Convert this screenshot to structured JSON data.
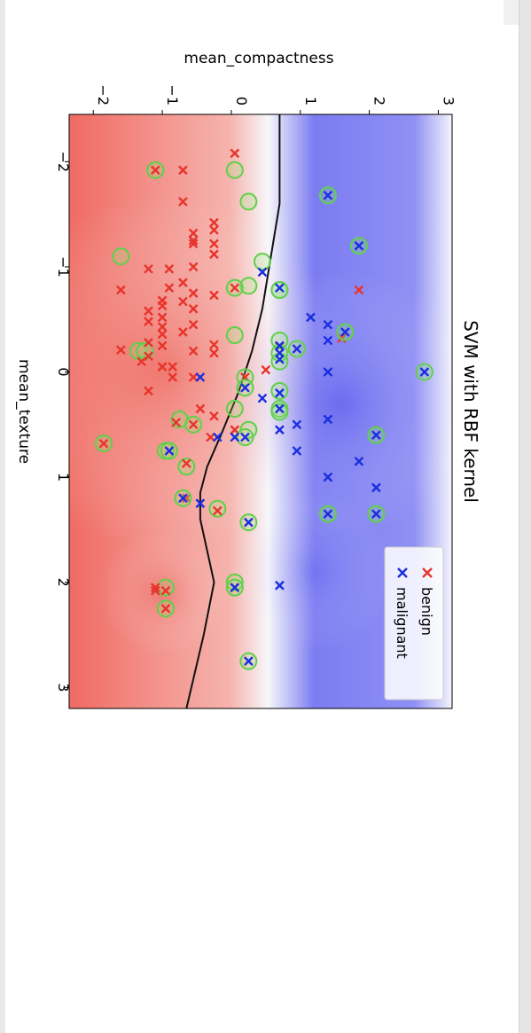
{
  "chart_data": {
    "type": "scatter",
    "title": "SVM with RBF kernel",
    "xlabel": "mean_texture",
    "ylabel": "mean_compactness",
    "xlim": [
      -2.45,
      3.2
    ],
    "ylim": [
      -2.35,
      3.2
    ],
    "xticks": [
      -2,
      -1,
      0,
      1,
      2,
      3
    ],
    "yticks": [
      -2,
      -1,
      0,
      1,
      2,
      3
    ],
    "xtick_labels": [
      "−2",
      "−1",
      "0",
      "1",
      "2",
      "3"
    ],
    "ytick_labels": [
      "−2",
      "−1",
      "0",
      "1",
      "2",
      "3"
    ],
    "legend": {
      "placement": "lower-right",
      "entries": [
        "benign",
        "malignant"
      ]
    },
    "background": "decision-function shading (red = benign side, blue = malignant side)",
    "decision_boundary": {
      "x": [
        -2.45,
        -1.6,
        -1.2,
        -0.6,
        -0.2,
        0.2,
        0.6,
        0.9,
        1.15,
        1.4,
        1.7,
        2.0,
        2.5,
        3.2
      ],
      "y": [
        0.7,
        0.7,
        0.6,
        0.45,
        0.3,
        0.1,
        -0.15,
        -0.35,
        -0.45,
        -0.45,
        -0.35,
        -0.25,
        -0.4,
        -0.65
      ]
    },
    "series": [
      {
        "name": "benign",
        "color": "#e8342c",
        "points": [
          [
            -1.92,
            -1.1
          ],
          [
            -1.92,
            -0.7
          ],
          [
            -2.08,
            0.05
          ],
          [
            -1.62,
            -0.7
          ],
          [
            -1.42,
            -0.25
          ],
          [
            -1.35,
            -0.25
          ],
          [
            -1.32,
            -0.55
          ],
          [
            -1.25,
            -0.55
          ],
          [
            -1.22,
            -0.25
          ],
          [
            -1.22,
            -0.55
          ],
          [
            -1.12,
            -0.25
          ],
          [
            -1.0,
            -0.55
          ],
          [
            -0.98,
            -1.2
          ],
          [
            -0.98,
            -0.9
          ],
          [
            -0.85,
            -0.7
          ],
          [
            -0.8,
            0.05
          ],
          [
            -0.8,
            -0.9
          ],
          [
            -0.78,
            -1.6
          ],
          [
            -0.75,
            -0.55
          ],
          [
            -0.73,
            -0.25
          ],
          [
            -0.68,
            -1.0
          ],
          [
            -0.67,
            -0.7
          ],
          [
            -0.63,
            -1.0
          ],
          [
            -0.6,
            -0.55
          ],
          [
            -0.58,
            -1.2
          ],
          [
            -0.52,
            -1.0
          ],
          [
            -0.48,
            -1.2
          ],
          [
            -0.45,
            -0.55
          ],
          [
            -0.43,
            -1.0
          ],
          [
            -0.38,
            -0.7
          ],
          [
            -0.36,
            -1.0
          ],
          [
            -0.28,
            -1.2
          ],
          [
            -0.26,
            -0.25
          ],
          [
            -0.25,
            -1.0
          ],
          [
            -0.21,
            -1.6
          ],
          [
            -0.2,
            -0.55
          ],
          [
            -0.18,
            -0.25
          ],
          [
            -0.15,
            -1.2
          ],
          [
            -0.1,
            -1.3
          ],
          [
            -0.05,
            -1.0
          ],
          [
            -0.05,
            -0.85
          ],
          [
            0.05,
            -0.85
          ],
          [
            0.05,
            -0.55
          ],
          [
            -0.02,
            0.5
          ],
          [
            0.05,
            0.2
          ],
          [
            0.18,
            -1.2
          ],
          [
            0.35,
            -0.45
          ],
          [
            0.42,
            -0.25
          ],
          [
            0.48,
            -0.8
          ],
          [
            0.5,
            -0.55
          ],
          [
            0.55,
            0.05
          ],
          [
            0.62,
            -0.3
          ],
          [
            0.68,
            -1.85
          ],
          [
            0.87,
            -0.65
          ],
          [
            1.2,
            -0.65
          ],
          [
            1.32,
            -0.2
          ],
          [
            2.05,
            -1.1
          ],
          [
            2.08,
            -1.1
          ],
          [
            2.05,
            0.05
          ],
          [
            2.08,
            -0.95
          ],
          [
            2.25,
            -0.95
          ],
          [
            -0.32,
            1.6
          ],
          [
            -0.24,
            0.7
          ],
          [
            -0.78,
            1.85
          ]
        ],
        "support_vectors": [
          [
            -1.92,
            -1.1
          ],
          [
            -1.92,
            0.05
          ],
          [
            -1.62,
            0.25
          ],
          [
            -1.1,
            -1.6
          ],
          [
            -0.82,
            0.25
          ],
          [
            -0.8,
            0.05
          ],
          [
            -0.78,
            0.7
          ],
          [
            -0.35,
            0.05
          ],
          [
            -0.2,
            -1.35
          ],
          [
            -0.2,
            -1.25
          ],
          [
            -0.1,
            0.7
          ],
          [
            0.05,
            0.2
          ],
          [
            0.35,
            0.05
          ],
          [
            0.45,
            -0.75
          ],
          [
            0.55,
            0.25
          ],
          [
            0.5,
            -0.55
          ],
          [
            0.68,
            -1.85
          ],
          [
            0.75,
            -0.95
          ],
          [
            0.9,
            -0.65
          ],
          [
            1.3,
            -0.2
          ],
          [
            2.0,
            0.05
          ],
          [
            2.05,
            -0.95
          ],
          [
            2.25,
            -0.95
          ]
        ]
      },
      {
        "name": "malignant",
        "color": "#1a2ee0",
        "points": [
          [
            -1.68,
            1.4
          ],
          [
            -1.2,
            1.85
          ],
          [
            -0.95,
            0.45
          ],
          [
            -0.8,
            0.7
          ],
          [
            -0.52,
            1.15
          ],
          [
            -0.45,
            1.4
          ],
          [
            -0.38,
            1.65
          ],
          [
            -0.3,
            1.4
          ],
          [
            -0.25,
            0.7
          ],
          [
            -0.22,
            0.95
          ],
          [
            -0.18,
            0.7
          ],
          [
            -0.12,
            0.7
          ],
          [
            0.0,
            2.8
          ],
          [
            0.0,
            1.4
          ],
          [
            0.05,
            -0.45
          ],
          [
            0.15,
            0.2
          ],
          [
            0.2,
            0.7
          ],
          [
            0.25,
            0.45
          ],
          [
            0.35,
            0.7
          ],
          [
            0.45,
            1.4
          ],
          [
            0.55,
            0.7
          ],
          [
            0.5,
            0.95
          ],
          [
            0.6,
            2.1
          ],
          [
            0.62,
            -0.2
          ],
          [
            0.62,
            0.2
          ],
          [
            0.62,
            0.05
          ],
          [
            0.75,
            -0.9
          ],
          [
            0.75,
            0.95
          ],
          [
            0.85,
            1.85
          ],
          [
            1.0,
            1.4
          ],
          [
            1.1,
            2.1
          ],
          [
            1.2,
            -0.7
          ],
          [
            1.25,
            -0.45
          ],
          [
            1.35,
            1.4
          ],
          [
            1.35,
            2.1
          ],
          [
            1.43,
            0.25
          ],
          [
            2.03,
            0.7
          ],
          [
            2.05,
            0.05
          ],
          [
            2.75,
            0.25
          ]
        ],
        "support_vectors": [
          [
            -1.68,
            1.4
          ],
          [
            -1.2,
            1.85
          ],
          [
            -1.05,
            0.45
          ],
          [
            -0.78,
            0.7
          ],
          [
            -0.38,
            1.65
          ],
          [
            -0.3,
            0.7
          ],
          [
            -0.22,
            0.95
          ],
          [
            -0.18,
            0.7
          ],
          [
            0.0,
            2.8
          ],
          [
            0.15,
            0.2
          ],
          [
            0.18,
            0.7
          ],
          [
            0.35,
            0.7
          ],
          [
            0.38,
            0.7
          ],
          [
            0.6,
            2.1
          ],
          [
            0.62,
            0.2
          ],
          [
            0.75,
            -0.9
          ],
          [
            1.2,
            -0.7
          ],
          [
            1.35,
            1.4
          ],
          [
            1.35,
            2.1
          ],
          [
            1.43,
            0.25
          ],
          [
            2.05,
            0.05
          ],
          [
            2.75,
            0.25
          ]
        ]
      }
    ]
  }
}
